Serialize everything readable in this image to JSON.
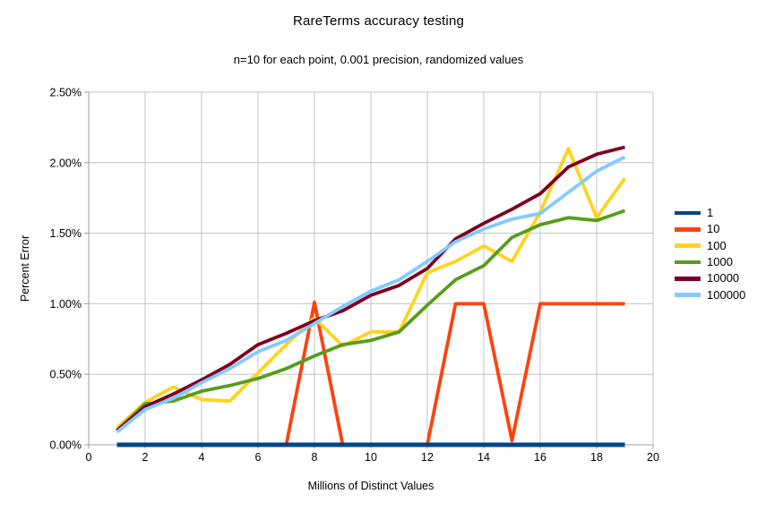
{
  "chart_data": {
    "type": "line",
    "title": "RareTerms accuracy testing",
    "subtitle": "n=10 for each point, 0.001 precision, randomized values",
    "xlabel": "Millions of Distinct Values",
    "ylabel": "Percent Error",
    "xlim": [
      0,
      20
    ],
    "ylim": [
      0,
      2.5
    ],
    "grid": true,
    "legend_position": "right",
    "grid_color": "#c3c3c3",
    "axis_color": "#9e9e9e",
    "x_ticks": [
      0,
      2,
      4,
      6,
      8,
      10,
      12,
      14,
      16,
      18,
      20
    ],
    "y_ticks": [
      {
        "v": 0.0,
        "label": "0.00%"
      },
      {
        "v": 0.5,
        "label": "0.50%"
      },
      {
        "v": 1.0,
        "label": "1.00%"
      },
      {
        "v": 1.5,
        "label": "1.50%"
      },
      {
        "v": 2.0,
        "label": "2.00%"
      },
      {
        "v": 2.5,
        "label": "2.50%"
      }
    ],
    "x": [
      1,
      2,
      3,
      4,
      5,
      6,
      7,
      8,
      9,
      10,
      11,
      12,
      13,
      14,
      15,
      16,
      17,
      18,
      19
    ],
    "series": [
      {
        "name": "1",
        "color": "#004586",
        "values": [
          0,
          0,
          0,
          0,
          0,
          0,
          0,
          0,
          0,
          0,
          0,
          0,
          0,
          0,
          0,
          0,
          0,
          0,
          0
        ]
      },
      {
        "name": "10",
        "color": "#FF420E",
        "values": [
          0,
          0,
          0,
          0,
          0,
          0,
          0,
          1.01,
          0,
          0,
          0,
          0,
          1.0,
          1.0,
          0.03,
          1.0,
          1.0,
          1.0,
          1.0
        ]
      },
      {
        "name": "100",
        "color": "#FFD320",
        "values": [
          0.12,
          0.3,
          0.41,
          0.32,
          0.31,
          0.51,
          0.71,
          0.9,
          0.7,
          0.8,
          0.8,
          1.22,
          1.3,
          1.41,
          1.3,
          1.65,
          2.1,
          1.61,
          1.89
        ]
      },
      {
        "name": "1000",
        "color": "#579D1C",
        "values": [
          0.1,
          0.29,
          0.31,
          0.38,
          0.42,
          0.47,
          0.54,
          0.63,
          0.71,
          0.74,
          0.8,
          0.99,
          1.17,
          1.27,
          1.47,
          1.56,
          1.61,
          1.59,
          1.66
        ]
      },
      {
        "name": "10000",
        "color": "#7E0021",
        "values": [
          0.1,
          0.27,
          0.36,
          0.46,
          0.57,
          0.71,
          0.79,
          0.88,
          0.95,
          1.06,
          1.13,
          1.25,
          1.46,
          1.57,
          1.67,
          1.78,
          1.97,
          2.06,
          2.11
        ]
      },
      {
        "name": "100000",
        "color": "#83CAFF",
        "values": [
          0.09,
          0.25,
          0.33,
          0.44,
          0.54,
          0.66,
          0.74,
          0.86,
          0.98,
          1.09,
          1.17,
          1.3,
          1.44,
          1.53,
          1.6,
          1.64,
          1.79,
          1.94,
          2.04
        ]
      }
    ]
  }
}
